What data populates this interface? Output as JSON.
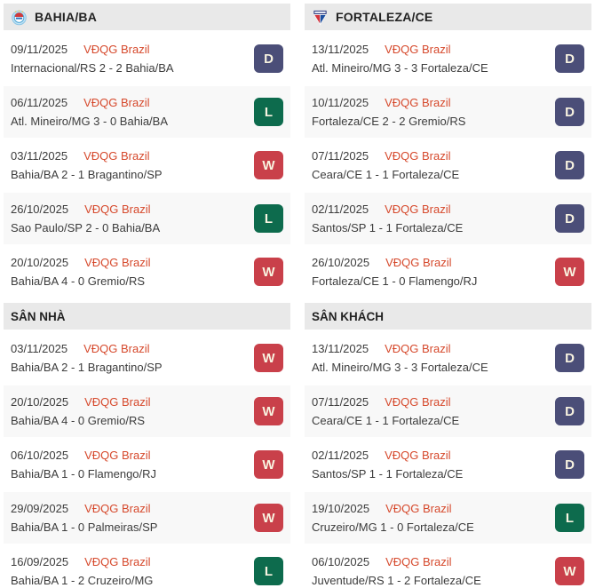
{
  "colors": {
    "league_red": "#d6492c",
    "badge_win": "#c9404a",
    "badge_draw": "#4b4e78",
    "badge_loss": "#0d6b4d",
    "header_bg": "#e9e9e9",
    "alt_row_bg": "#f8f8f8"
  },
  "columns": [
    {
      "team": "BAHIA/BA",
      "logo": "bahia",
      "recent": [
        {
          "date": "09/11/2025",
          "league": "VĐQG Brazil",
          "match": "Internacional/RS 2 - 2 Bahia/BA",
          "result": "D"
        },
        {
          "date": "06/11/2025",
          "league": "VĐQG Brazil",
          "match": "Atl. Mineiro/MG 3 - 0 Bahia/BA",
          "result": "L"
        },
        {
          "date": "03/11/2025",
          "league": "VĐQG Brazil",
          "match": "Bahia/BA 2 - 1 Bragantino/SP",
          "result": "W"
        },
        {
          "date": "26/10/2025",
          "league": "VĐQG Brazil",
          "match": "Sao Paulo/SP 2 - 0 Bahia/BA",
          "result": "L"
        },
        {
          "date": "20/10/2025",
          "league": "VĐQG Brazil",
          "match": "Bahia/BA 4 - 0 Gremio/RS",
          "result": "W"
        }
      ],
      "section_title": "SÂN NHÀ",
      "section": [
        {
          "date": "03/11/2025",
          "league": "VĐQG Brazil",
          "match": "Bahia/BA 2 - 1 Bragantino/SP",
          "result": "W"
        },
        {
          "date": "20/10/2025",
          "league": "VĐQG Brazil",
          "match": "Bahia/BA 4 - 0 Gremio/RS",
          "result": "W"
        },
        {
          "date": "06/10/2025",
          "league": "VĐQG Brazil",
          "match": "Bahia/BA 1 - 0 Flamengo/RJ",
          "result": "W"
        },
        {
          "date": "29/09/2025",
          "league": "VĐQG Brazil",
          "match": "Bahia/BA 1 - 0 Palmeiras/SP",
          "result": "W"
        },
        {
          "date": "16/09/2025",
          "league": "VĐQG Brazil",
          "match": "Bahia/BA 1 - 2 Cruzeiro/MG",
          "result": "L"
        }
      ]
    },
    {
      "team": "FORTALEZA/CE",
      "logo": "fortaleza",
      "recent": [
        {
          "date": "13/11/2025",
          "league": "VĐQG Brazil",
          "match": "Atl. Mineiro/MG 3 - 3 Fortaleza/CE",
          "result": "D"
        },
        {
          "date": "10/11/2025",
          "league": "VĐQG Brazil",
          "match": "Fortaleza/CE 2 - 2 Gremio/RS",
          "result": "D"
        },
        {
          "date": "07/11/2025",
          "league": "VĐQG Brazil",
          "match": "Ceara/CE 1 - 1 Fortaleza/CE",
          "result": "D"
        },
        {
          "date": "02/11/2025",
          "league": "VĐQG Brazil",
          "match": "Santos/SP 1 - 1 Fortaleza/CE",
          "result": "D"
        },
        {
          "date": "26/10/2025",
          "league": "VĐQG Brazil",
          "match": "Fortaleza/CE 1 - 0 Flamengo/RJ",
          "result": "W"
        }
      ],
      "section_title": "SÂN KHÁCH",
      "section": [
        {
          "date": "13/11/2025",
          "league": "VĐQG Brazil",
          "match": "Atl. Mineiro/MG 3 - 3 Fortaleza/CE",
          "result": "D"
        },
        {
          "date": "07/11/2025",
          "league": "VĐQG Brazil",
          "match": "Ceara/CE 1 - 1 Fortaleza/CE",
          "result": "D"
        },
        {
          "date": "02/11/2025",
          "league": "VĐQG Brazil",
          "match": "Santos/SP 1 - 1 Fortaleza/CE",
          "result": "D"
        },
        {
          "date": "19/10/2025",
          "league": "VĐQG Brazil",
          "match": "Cruzeiro/MG 1 - 0 Fortaleza/CE",
          "result": "L"
        },
        {
          "date": "06/10/2025",
          "league": "VĐQG Brazil",
          "match": "Juventude/RS 1 - 2 Fortaleza/CE",
          "result": "W"
        }
      ]
    }
  ]
}
